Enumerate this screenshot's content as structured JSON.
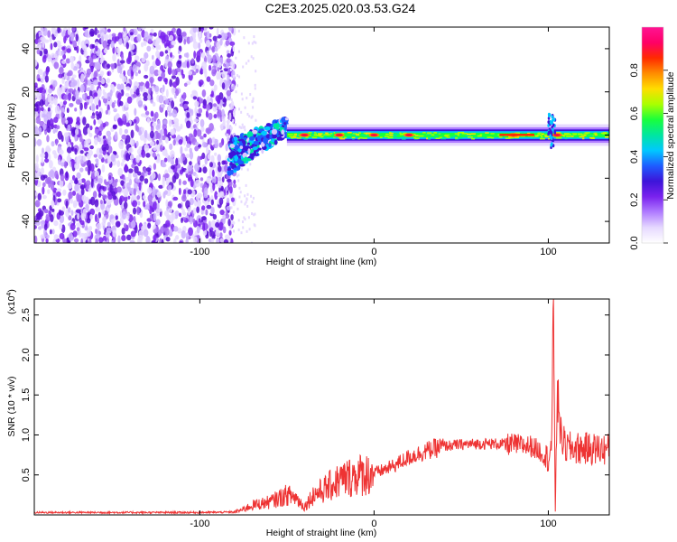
{
  "title": "C2E3.2025.020.03.53.G24",
  "chart_data": [
    {
      "type": "heatmap",
      "xlabel": "Height of straight line (km)",
      "ylabel": "Frequency (Hz)",
      "xlim": [
        -195,
        135
      ],
      "ylim": [
        -50,
        50
      ],
      "x_ticks": [
        -100,
        0,
        100
      ],
      "y_ticks": [
        -40,
        -20,
        0,
        20,
        40
      ],
      "colorbar": {
        "label": "Normalized spectral amplitude",
        "range": [
          0,
          1
        ],
        "ticks": [
          0.0,
          0.2,
          0.4,
          0.6,
          0.8
        ],
        "colors": [
          "#ffffff",
          "#e6d9ff",
          "#b07cff",
          "#7a22ee",
          "#3d14d9",
          "#1e5cff",
          "#00c8ff",
          "#00e6a0",
          "#19ff3c",
          "#aaff00",
          "#ffdd00",
          "#ff8c00",
          "#ff2a00",
          "#ff0066",
          "#ff1493"
        ]
      },
      "features": {
        "noise_region_x": [
          -195,
          -83
        ],
        "transition_x": [
          -83,
          -50
        ],
        "carrier_frequency_hz": 0,
        "carrier_x": [
          -50,
          135
        ],
        "peak_amplitude_x": [
          -40,
          -20,
          0,
          20,
          80,
          105
        ]
      }
    },
    {
      "type": "line",
      "xlabel": "Height of straight line (km)",
      "ylabel": "SNR (10 * v/v)",
      "y_multiplier": "(x10⁴)",
      "multiplier_base": "(x10",
      "multiplier_exp": "4",
      "multiplier_close": ")",
      "xlim": [
        -195,
        135
      ],
      "ylim": [
        0,
        27000
      ],
      "x_ticks": [
        -100,
        0,
        100
      ],
      "y_ticks": [
        0.5,
        1.0,
        1.5,
        2.0,
        2.5
      ],
      "line_color": "#ee3333",
      "series": [
        {
          "x": [
            -195,
            -150,
            -100,
            -80,
            -75,
            -70,
            -60,
            -50,
            -45,
            -40,
            -35,
            -30,
            -20,
            -10,
            0,
            10,
            20,
            30,
            40,
            50,
            60,
            70,
            80,
            90,
            95,
            100,
            102,
            103,
            104,
            105,
            106,
            107,
            110,
            120,
            135
          ],
          "y": [
            300,
            300,
            300,
            350,
            700,
            1200,
            1600,
            2500,
            2200,
            1000,
            2500,
            3000,
            4300,
            5000,
            5200,
            6000,
            7200,
            8000,
            8600,
            8800,
            8900,
            8900,
            8800,
            8600,
            8000,
            7000,
            9000,
            27000,
            500,
            13000,
            15000,
            10000,
            8400,
            8300,
            8200
          ]
        }
      ]
    }
  ]
}
